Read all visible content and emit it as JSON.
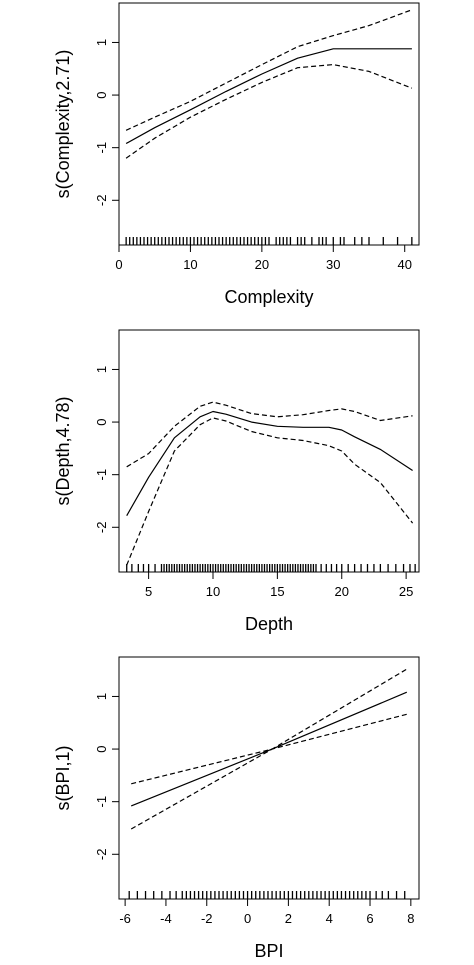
{
  "chart_data": [
    {
      "type": "line",
      "title": "",
      "xlabel": "Complexity",
      "ylabel": "s(Complexity,2.71)",
      "xlim": [
        0,
        42
      ],
      "ylim": [
        -2.85,
        1.75
      ],
      "x_ticks": [
        0,
        10,
        20,
        30,
        40
      ],
      "y_ticks": [
        -2,
        -1,
        0,
        1
      ],
      "x": [
        1,
        5,
        10,
        15,
        20,
        25,
        30,
        35,
        41
      ],
      "series": [
        {
          "name": "",
          "style": "solid",
          "values": [
            -0.92,
            -0.62,
            -0.28,
            0.07,
            0.4,
            0.7,
            0.88,
            0.88,
            0.88
          ]
        },
        {
          "name": "",
          "style": "dashed",
          "values": [
            -0.67,
            -0.42,
            -0.12,
            0.23,
            0.58,
            0.92,
            1.13,
            1.32,
            1.62
          ]
        },
        {
          "name": "",
          "style": "dashed",
          "values": [
            -1.2,
            -0.82,
            -0.42,
            -0.08,
            0.24,
            0.52,
            0.58,
            0.45,
            0.13
          ]
        }
      ],
      "rug": [
        1,
        1.5,
        2,
        2.5,
        3,
        3.5,
        4,
        4.5,
        5,
        5.5,
        6,
        6.5,
        7,
        7.5,
        8,
        8.5,
        9,
        9.5,
        10,
        10.5,
        11,
        11.5,
        12,
        12.5,
        13,
        13.5,
        14,
        14.5,
        15,
        15.5,
        16,
        16.5,
        17,
        17.5,
        18,
        18.5,
        19,
        19.5,
        20,
        20.5,
        21,
        22,
        22.5,
        23,
        23.5,
        24,
        25,
        25.5,
        26,
        27,
        28,
        28.5,
        29,
        30,
        31,
        31.5,
        33,
        34,
        35,
        37,
        39,
        41
      ]
    },
    {
      "type": "line",
      "title": "",
      "xlabel": "Depth",
      "ylabel": "s(Depth,4.78)",
      "xlim": [
        2.7,
        26
      ],
      "ylim": [
        -2.85,
        1.75
      ],
      "x_ticks": [
        5,
        10,
        15,
        20,
        25
      ],
      "y_ticks": [
        -2,
        -1,
        0,
        1
      ],
      "x": [
        3.3,
        5,
        7,
        9,
        10,
        11,
        13,
        15,
        17,
        19,
        20,
        21,
        23,
        25.5
      ],
      "series": [
        {
          "name": "",
          "style": "solid",
          "values": [
            -1.78,
            -1.05,
            -0.3,
            0.1,
            0.2,
            0.15,
            0.0,
            -0.08,
            -0.1,
            -0.1,
            -0.15,
            -0.28,
            -0.52,
            -0.92
          ]
        },
        {
          "name": "",
          "style": "dashed",
          "values": [
            -0.85,
            -0.6,
            -0.08,
            0.3,
            0.38,
            0.32,
            0.16,
            0.1,
            0.14,
            0.22,
            0.25,
            0.2,
            0.03,
            0.12
          ]
        },
        {
          "name": "",
          "style": "dashed",
          "values": [
            -2.72,
            -1.7,
            -0.55,
            -0.05,
            0.08,
            0.02,
            -0.18,
            -0.3,
            -0.35,
            -0.45,
            -0.55,
            -0.8,
            -1.15,
            -1.92
          ]
        }
      ],
      "rug": [
        3.3,
        3.7,
        4.2,
        4.6,
        5.0,
        5.5,
        6.0,
        6.2,
        6.4,
        6.6,
        6.8,
        7.0,
        7.2,
        7.4,
        7.6,
        7.8,
        8.0,
        8.2,
        8.4,
        8.6,
        8.8,
        9.0,
        9.2,
        9.4,
        9.6,
        9.8,
        10.0,
        10.2,
        10.4,
        10.6,
        10.8,
        11.0,
        11.2,
        11.4,
        11.6,
        11.8,
        12.0,
        12.2,
        12.4,
        12.6,
        12.8,
        13.0,
        13.2,
        13.4,
        13.6,
        13.8,
        14.0,
        14.2,
        14.4,
        14.6,
        14.8,
        15.0,
        15.2,
        15.4,
        15.6,
        15.8,
        16.0,
        16.2,
        16.4,
        16.6,
        16.8,
        17.0,
        17.2,
        17.4,
        17.6,
        17.8,
        18.0,
        18.4,
        18.8,
        19.2,
        19.6,
        20.0,
        20.5,
        21.0,
        21.5,
        22.0,
        22.5,
        23.0,
        23.6,
        24.2,
        24.8,
        25.3,
        25.7
      ]
    },
    {
      "type": "line",
      "title": "",
      "xlabel": "BPI",
      "ylabel": "s(BPI,1)",
      "xlim": [
        -6.3,
        8.4
      ],
      "ylim": [
        -2.85,
        1.75
      ],
      "x_ticks": [
        -6,
        -4,
        -2,
        0,
        2,
        4,
        6,
        8
      ],
      "y_ticks": [
        -2,
        -1,
        0,
        1
      ],
      "x": [
        -5.7,
        1.2,
        7.8
      ],
      "series": [
        {
          "name": "",
          "style": "solid",
          "values": [
            -1.08,
            0.0,
            1.08
          ]
        },
        {
          "name": "",
          "style": "dashed",
          "values": [
            -0.66,
            0.0,
            1.52
          ]
        },
        {
          "name": "",
          "style": "dashed",
          "values": [
            -1.52,
            0.0,
            0.66
          ]
        }
      ],
      "rug": [
        -5.8,
        -5.4,
        -5.0,
        -4.6,
        -4.2,
        -3.8,
        -3.5,
        -3.2,
        -3.0,
        -2.8,
        -2.6,
        -2.4,
        -2.2,
        -2.0,
        -1.8,
        -1.6,
        -1.4,
        -1.2,
        -1.0,
        -0.8,
        -0.6,
        -0.4,
        -0.2,
        0.0,
        0.2,
        0.4,
        0.6,
        0.8,
        1.0,
        1.2,
        1.4,
        1.6,
        1.8,
        2.0,
        2.2,
        2.4,
        2.6,
        2.8,
        3.0,
        3.2,
        3.4,
        3.6,
        3.8,
        4.0,
        4.2,
        4.4,
        4.6,
        4.8,
        5.0,
        5.2,
        5.4,
        5.6,
        5.8,
        6.0,
        6.3,
        6.6,
        6.9,
        7.3,
        7.7
      ]
    }
  ]
}
